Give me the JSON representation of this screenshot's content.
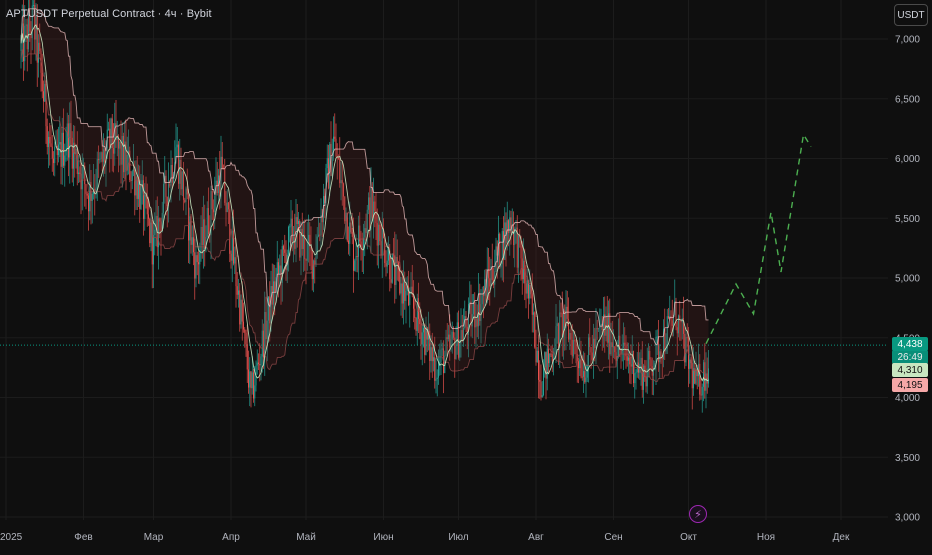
{
  "header": {
    "symbol_title": "APTUSDT Perpetual Contract · 4ч · Bybit",
    "currency_button": "USDT"
  },
  "price_badges": {
    "last_price": "4,438",
    "countdown": "26:49",
    "upper_band": "4,310",
    "lower_band": "4,195"
  },
  "event_icon": "lightning-icon",
  "colors": {
    "background": "#0f0f0f",
    "up_candle": "#26a69a",
    "down_candle": "#ef5350",
    "upper_line": "#c8e6c0",
    "lower_line": "#f6c6c6",
    "projection": "#4caf50",
    "last_price_line": "#089981"
  },
  "chart_data": {
    "type": "candlestick",
    "title": "APTUSDT Perpetual Contract · 4ч · Bybit",
    "xlabel": "",
    "ylabel": "",
    "ylim": [
      2950,
      7200
    ],
    "yticks": [
      3000,
      3500,
      4000,
      4500,
      5000,
      5500,
      6000,
      6500,
      7000
    ],
    "ytick_labels": [
      "3,000",
      "3,500",
      "4,000",
      "4,500",
      "5,000",
      "5,500",
      "6,000",
      "6,500",
      "7,000"
    ],
    "xticks": [
      "2025",
      "Фев",
      "Мар",
      "Апр",
      "Май",
      "Июн",
      "Июл",
      "Авг",
      "Сен",
      "Окт",
      "Ноя",
      "Дек"
    ],
    "last_price": 4438,
    "grid": true,
    "price_path": [
      {
        "date": "2025-01-07",
        "close": 6900
      },
      {
        "date": "2025-01-12",
        "close": 7150
      },
      {
        "date": "2025-01-20",
        "close": 5900
      },
      {
        "date": "2025-01-26",
        "close": 6200
      },
      {
        "date": "2025-02-03",
        "close": 5700
      },
      {
        "date": "2025-02-12",
        "close": 6150
      },
      {
        "date": "2025-02-22",
        "close": 5850
      },
      {
        "date": "2025-03-01",
        "close": 5250
      },
      {
        "date": "2025-03-10",
        "close": 6100
      },
      {
        "date": "2025-03-18",
        "close": 5100
      },
      {
        "date": "2025-03-28",
        "close": 5900
      },
      {
        "date": "2025-04-05",
        "close": 4700
      },
      {
        "date": "2025-04-09",
        "close": 4000
      },
      {
        "date": "2025-04-18",
        "close": 4900
      },
      {
        "date": "2025-04-26",
        "close": 5400
      },
      {
        "date": "2025-05-04",
        "close": 5150
      },
      {
        "date": "2025-05-12",
        "close": 6150
      },
      {
        "date": "2025-05-20",
        "close": 5200
      },
      {
        "date": "2025-05-27",
        "close": 5600
      },
      {
        "date": "2025-06-05",
        "close": 5050
      },
      {
        "date": "2025-06-15",
        "close": 4650
      },
      {
        "date": "2025-06-22",
        "close": 4250
      },
      {
        "date": "2025-07-01",
        "close": 4500
      },
      {
        "date": "2025-07-10",
        "close": 4800
      },
      {
        "date": "2025-07-16",
        "close": 5150
      },
      {
        "date": "2025-07-22",
        "close": 5500
      },
      {
        "date": "2025-07-30",
        "close": 4750
      },
      {
        "date": "2025-08-03",
        "close": 4150
      },
      {
        "date": "2025-08-12",
        "close": 4650
      },
      {
        "date": "2025-08-20",
        "close": 4250
      },
      {
        "date": "2025-08-28",
        "close": 4600
      },
      {
        "date": "2025-09-05",
        "close": 4350
      },
      {
        "date": "2025-09-14",
        "close": 4200
      },
      {
        "date": "2025-09-20",
        "close": 4450
      },
      {
        "date": "2025-09-26",
        "close": 4700
      },
      {
        "date": "2025-10-01",
        "close": 4300
      },
      {
        "date": "2025-10-04",
        "close": 4100
      },
      {
        "date": "2025-10-09",
        "close": 4250
      }
    ],
    "projection": [
      {
        "date": "2025-10-08",
        "value": 4450
      },
      {
        "date": "2025-10-20",
        "value": 4950
      },
      {
        "date": "2025-10-27",
        "value": 4700
      },
      {
        "date": "2025-11-03",
        "value": 5550
      },
      {
        "date": "2025-11-07",
        "value": 5050
      },
      {
        "date": "2025-11-16",
        "value": 6200
      },
      {
        "date": "2025-11-19",
        "value": 6100
      }
    ]
  }
}
